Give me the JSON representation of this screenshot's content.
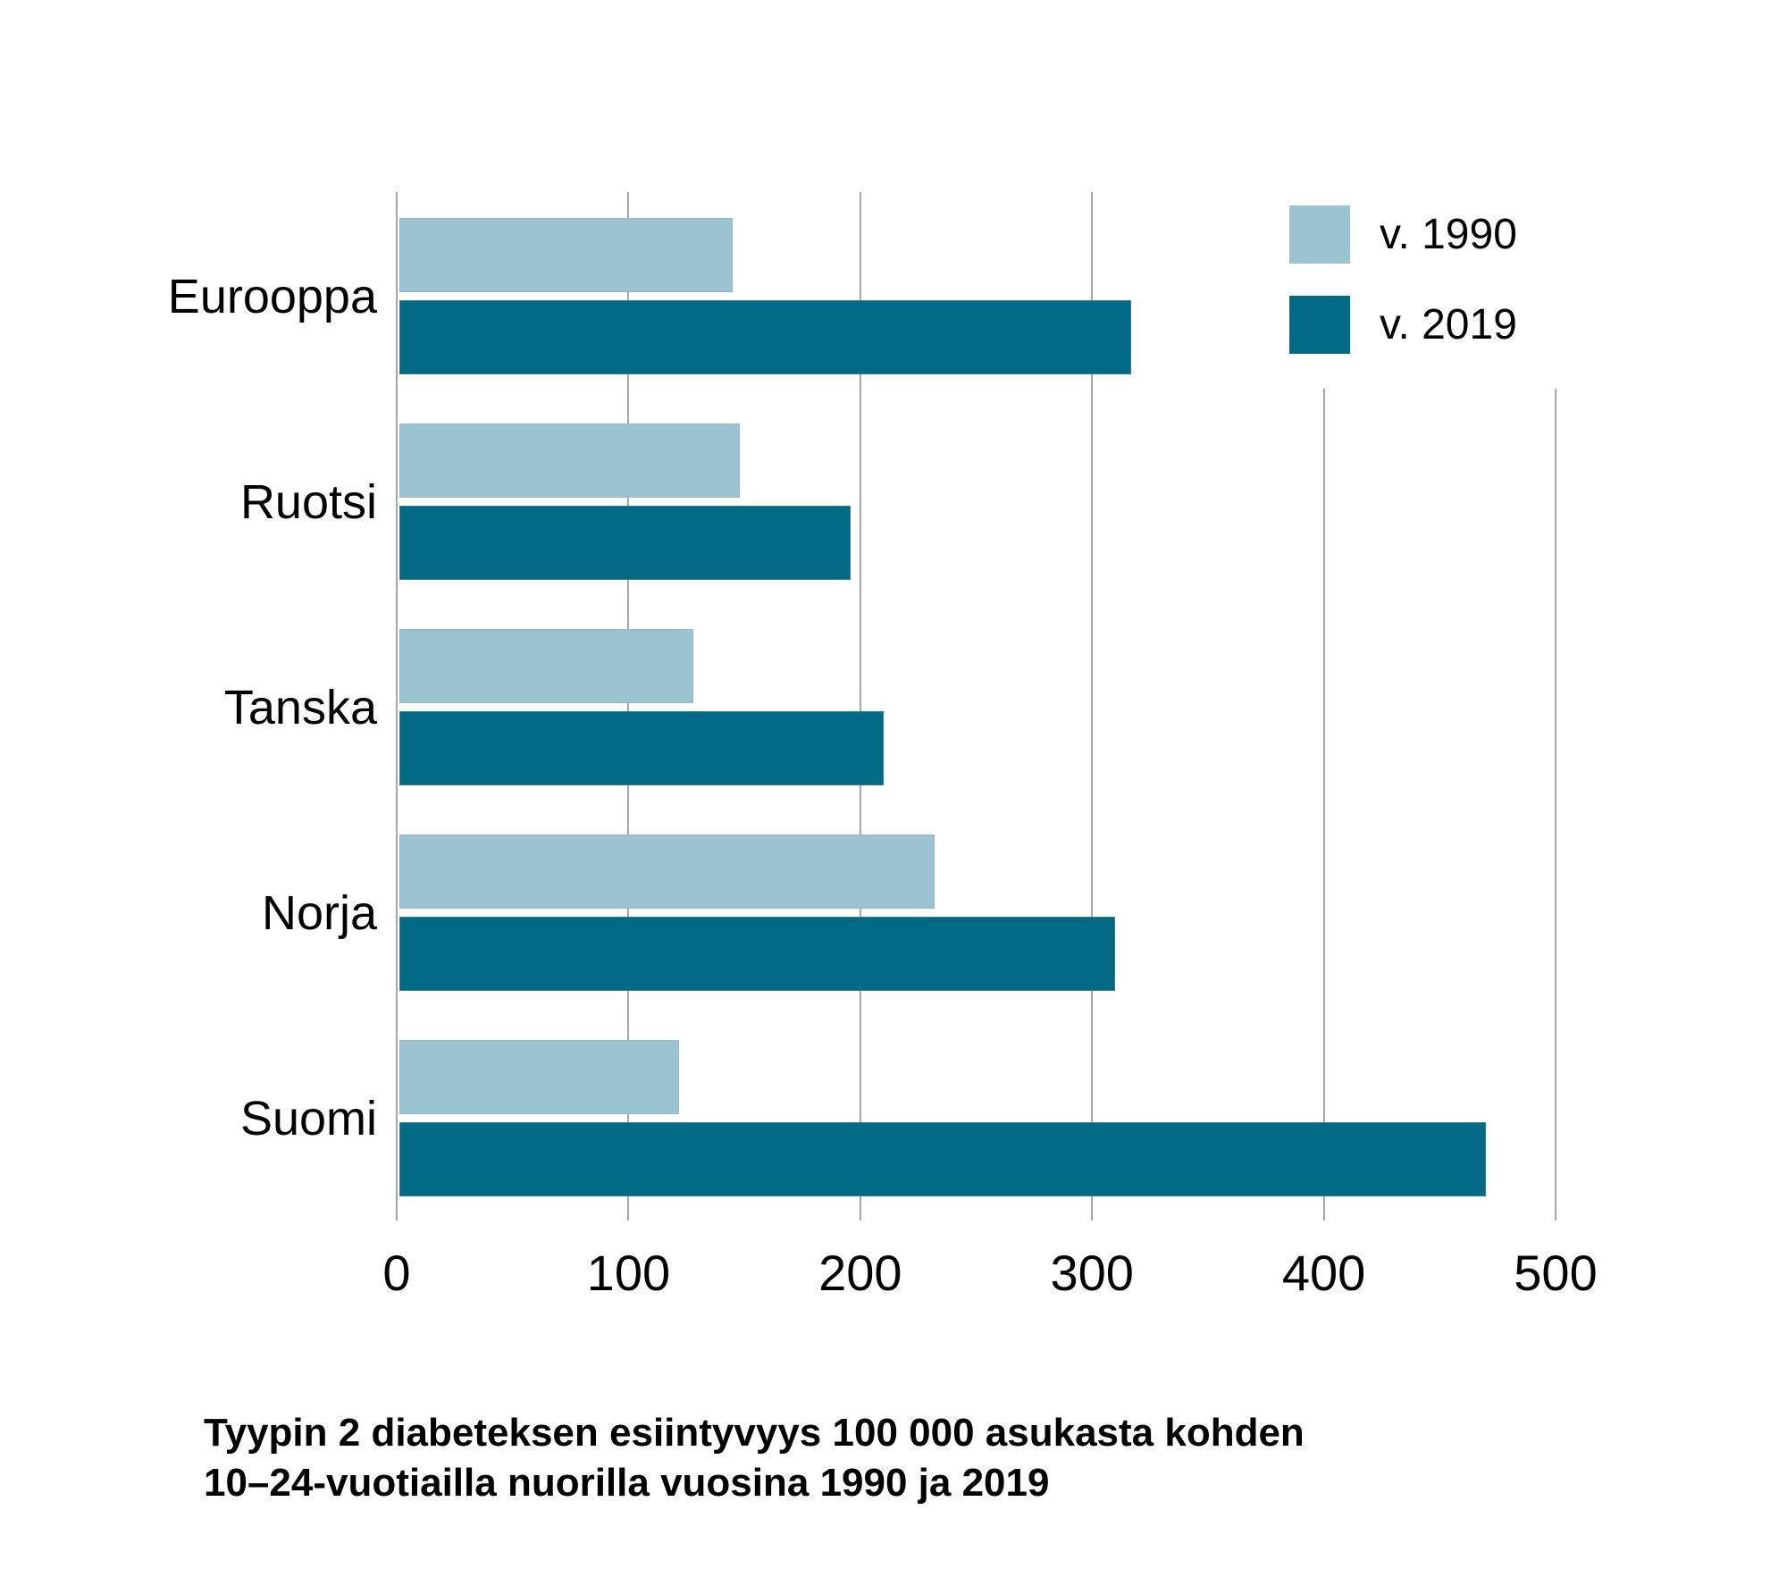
{
  "chart_data": {
    "type": "bar",
    "orientation": "horizontal",
    "title": "Tyypin 2 diabeteksen esiintyvyys 100 000 asukasta kohden 10–24-vuotiailla nuorilla vuosina 1990 ja 2019",
    "title_line1": "Tyypin 2 diabeteksen esiintyvyys 100 000 asukasta kohden",
    "title_line2": "10–24-vuotiailla nuorilla vuosina 1990 ja 2019",
    "categories": [
      "Eurooppa",
      "Ruotsi",
      "Tanska",
      "Norja",
      "Suomi"
    ],
    "series": [
      {
        "name": "v. 1990",
        "color": "#9cc3d1",
        "values": [
          145,
          148,
          128,
          232,
          122
        ]
      },
      {
        "name": "v. 2019",
        "color": "#026a85",
        "values": [
          317,
          196,
          210,
          310,
          470
        ]
      }
    ],
    "xlabel": "",
    "ylabel": "",
    "xlim": [
      0,
      500
    ],
    "x_ticks": [
      0,
      100,
      200,
      300,
      400,
      500
    ],
    "grid": "vertical-gridlines-on",
    "legend_position": "top-right",
    "gridline_color": "#a6a6a6",
    "background_color": "#ffffff",
    "text_color": "#000000"
  }
}
